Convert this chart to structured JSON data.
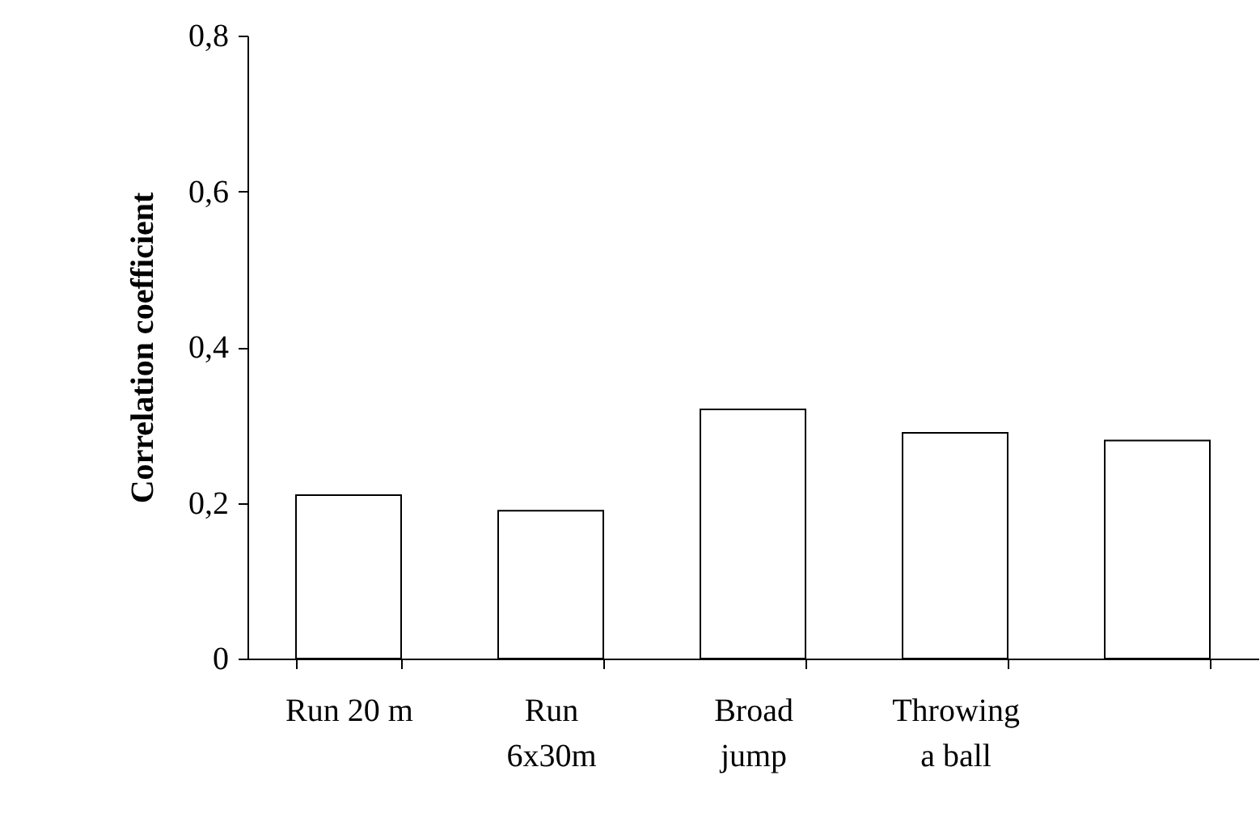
{
  "chart_data": {
    "type": "bar",
    "ylabel": "Correlation coefficient",
    "categories": [
      "Run 20 m",
      "Run\n6x30m",
      "Broad\njump",
      "Throwing\na ball",
      null
    ],
    "values": [
      0.21,
      0.19,
      0.32,
      0.29,
      0.28
    ],
    "color": "#ffffff",
    "ylim": [
      0,
      0.8
    ],
    "yticks": [
      0,
      {
        "value": 0.2,
        "label": "0,2"
      },
      {
        "value": 0.4,
        "label": "0,4"
      },
      {
        "value": 0.6,
        "label": "0,6"
      },
      {
        "value": 0.8,
        "label": "0,8"
      }
    ],
    "grid": false
  }
}
